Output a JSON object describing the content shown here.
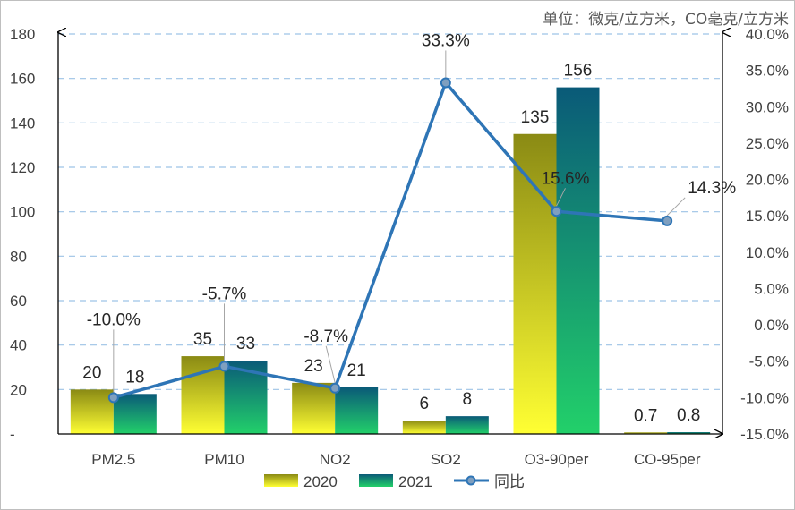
{
  "chart_data": {
    "type": "bar",
    "unit_label": "单位：微克/立方米，CO毫克/立方米",
    "categories": [
      "PM2.5",
      "PM10",
      "NO2",
      "SO2",
      "O3-90per",
      "CO-95per"
    ],
    "series": [
      {
        "name": "2020",
        "type": "bar",
        "values": [
          20,
          35,
          23,
          6,
          135,
          0.7
        ],
        "labels": [
          "20",
          "35",
          "23",
          "6",
          "135",
          "0.7"
        ]
      },
      {
        "name": "2021",
        "type": "bar",
        "values": [
          18,
          33,
          21,
          8,
          156,
          0.8
        ],
        "labels": [
          "18",
          "33",
          "21",
          "8",
          "156",
          "0.8"
        ]
      },
      {
        "name": "同比",
        "type": "line",
        "axis": "right",
        "values": [
          -10.0,
          -5.7,
          -8.7,
          33.3,
          15.6,
          14.3
        ],
        "labels": [
          "-10.0%",
          "-5.7%",
          "-8.7%",
          "33.3%",
          "15.6%",
          "14.3%"
        ]
      }
    ],
    "left_axis": {
      "ylim": [
        0,
        180
      ],
      "ticks": [
        0,
        20,
        40,
        60,
        80,
        100,
        120,
        140,
        160,
        180
      ],
      "tick_labels": [
        "-",
        "20",
        "40",
        "60",
        "80",
        "100",
        "120",
        "140",
        "160",
        "180"
      ]
    },
    "right_axis": {
      "ylim": [
        -15,
        40
      ],
      "ticks": [
        -15,
        -10,
        -5,
        0,
        5,
        10,
        15,
        20,
        25,
        30,
        35,
        40
      ],
      "tick_labels": [
        "-15.0%",
        "-10.0%",
        "-5.0%",
        "0.0%",
        "5.0%",
        "10.0%",
        "15.0%",
        "20.0%",
        "25.0%",
        "30.0%",
        "35.0%",
        "40.0%"
      ]
    },
    "grid": "horizontal dashed",
    "legend_position": "bottom",
    "colors": {
      "s2020_top": "#8a8a14",
      "s2020_bottom": "#ffff33",
      "s2021_top": "#0a5a78",
      "s2021_bottom": "#22d06a",
      "line": "#2e75b6",
      "marker": "#7f9fbf",
      "grid": "#9dc3e6"
    }
  }
}
